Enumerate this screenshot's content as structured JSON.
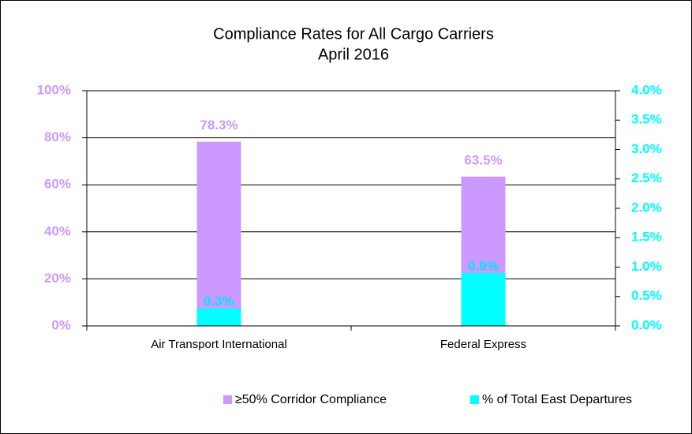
{
  "chart_data": {
    "type": "bar",
    "title": "Compliance  Rates for All Cargo Carriers",
    "subtitle": "April 2016",
    "categories": [
      "Air Transport International",
      "Federal Express"
    ],
    "series": [
      {
        "name": "≥50% Corridor Compliance",
        "color": "#cc99ff",
        "values": [
          78.3,
          63.5
        ],
        "value_labels": [
          "78.3%",
          "63.5%"
        ]
      },
      {
        "name": "% of Total East Departures",
        "color": "#00ffff",
        "axis": "y2",
        "values": [
          0.3,
          0.9
        ],
        "value_labels": [
          "0.3%",
          "0.9%"
        ]
      }
    ],
    "ylim": [
      0,
      100
    ],
    "yticks": [
      {
        "value": 0,
        "label": "0%"
      },
      {
        "value": 20,
        "label": "20%"
      },
      {
        "value": 40,
        "label": "40%"
      },
      {
        "value": 60,
        "label": "60%"
      },
      {
        "value": 80,
        "label": "80%"
      },
      {
        "value": 100,
        "label": "100%"
      }
    ],
    "y2lim": [
      0,
      4
    ],
    "y2ticks": [
      {
        "value": 0,
        "label": "0.0%"
      },
      {
        "value": 0.5,
        "label": "0.5%"
      },
      {
        "value": 1,
        "label": "1.0%"
      },
      {
        "value": 1.5,
        "label": "1.5%"
      },
      {
        "value": 2,
        "label": "2.0%"
      },
      {
        "value": 2.5,
        "label": "2.5%"
      },
      {
        "value": 3,
        "label": "3.0%"
      },
      {
        "value": 3.5,
        "label": "3.5%"
      },
      {
        "value": 4,
        "label": "4.0%"
      }
    ],
    "grid": true,
    "legend": "bottom"
  }
}
